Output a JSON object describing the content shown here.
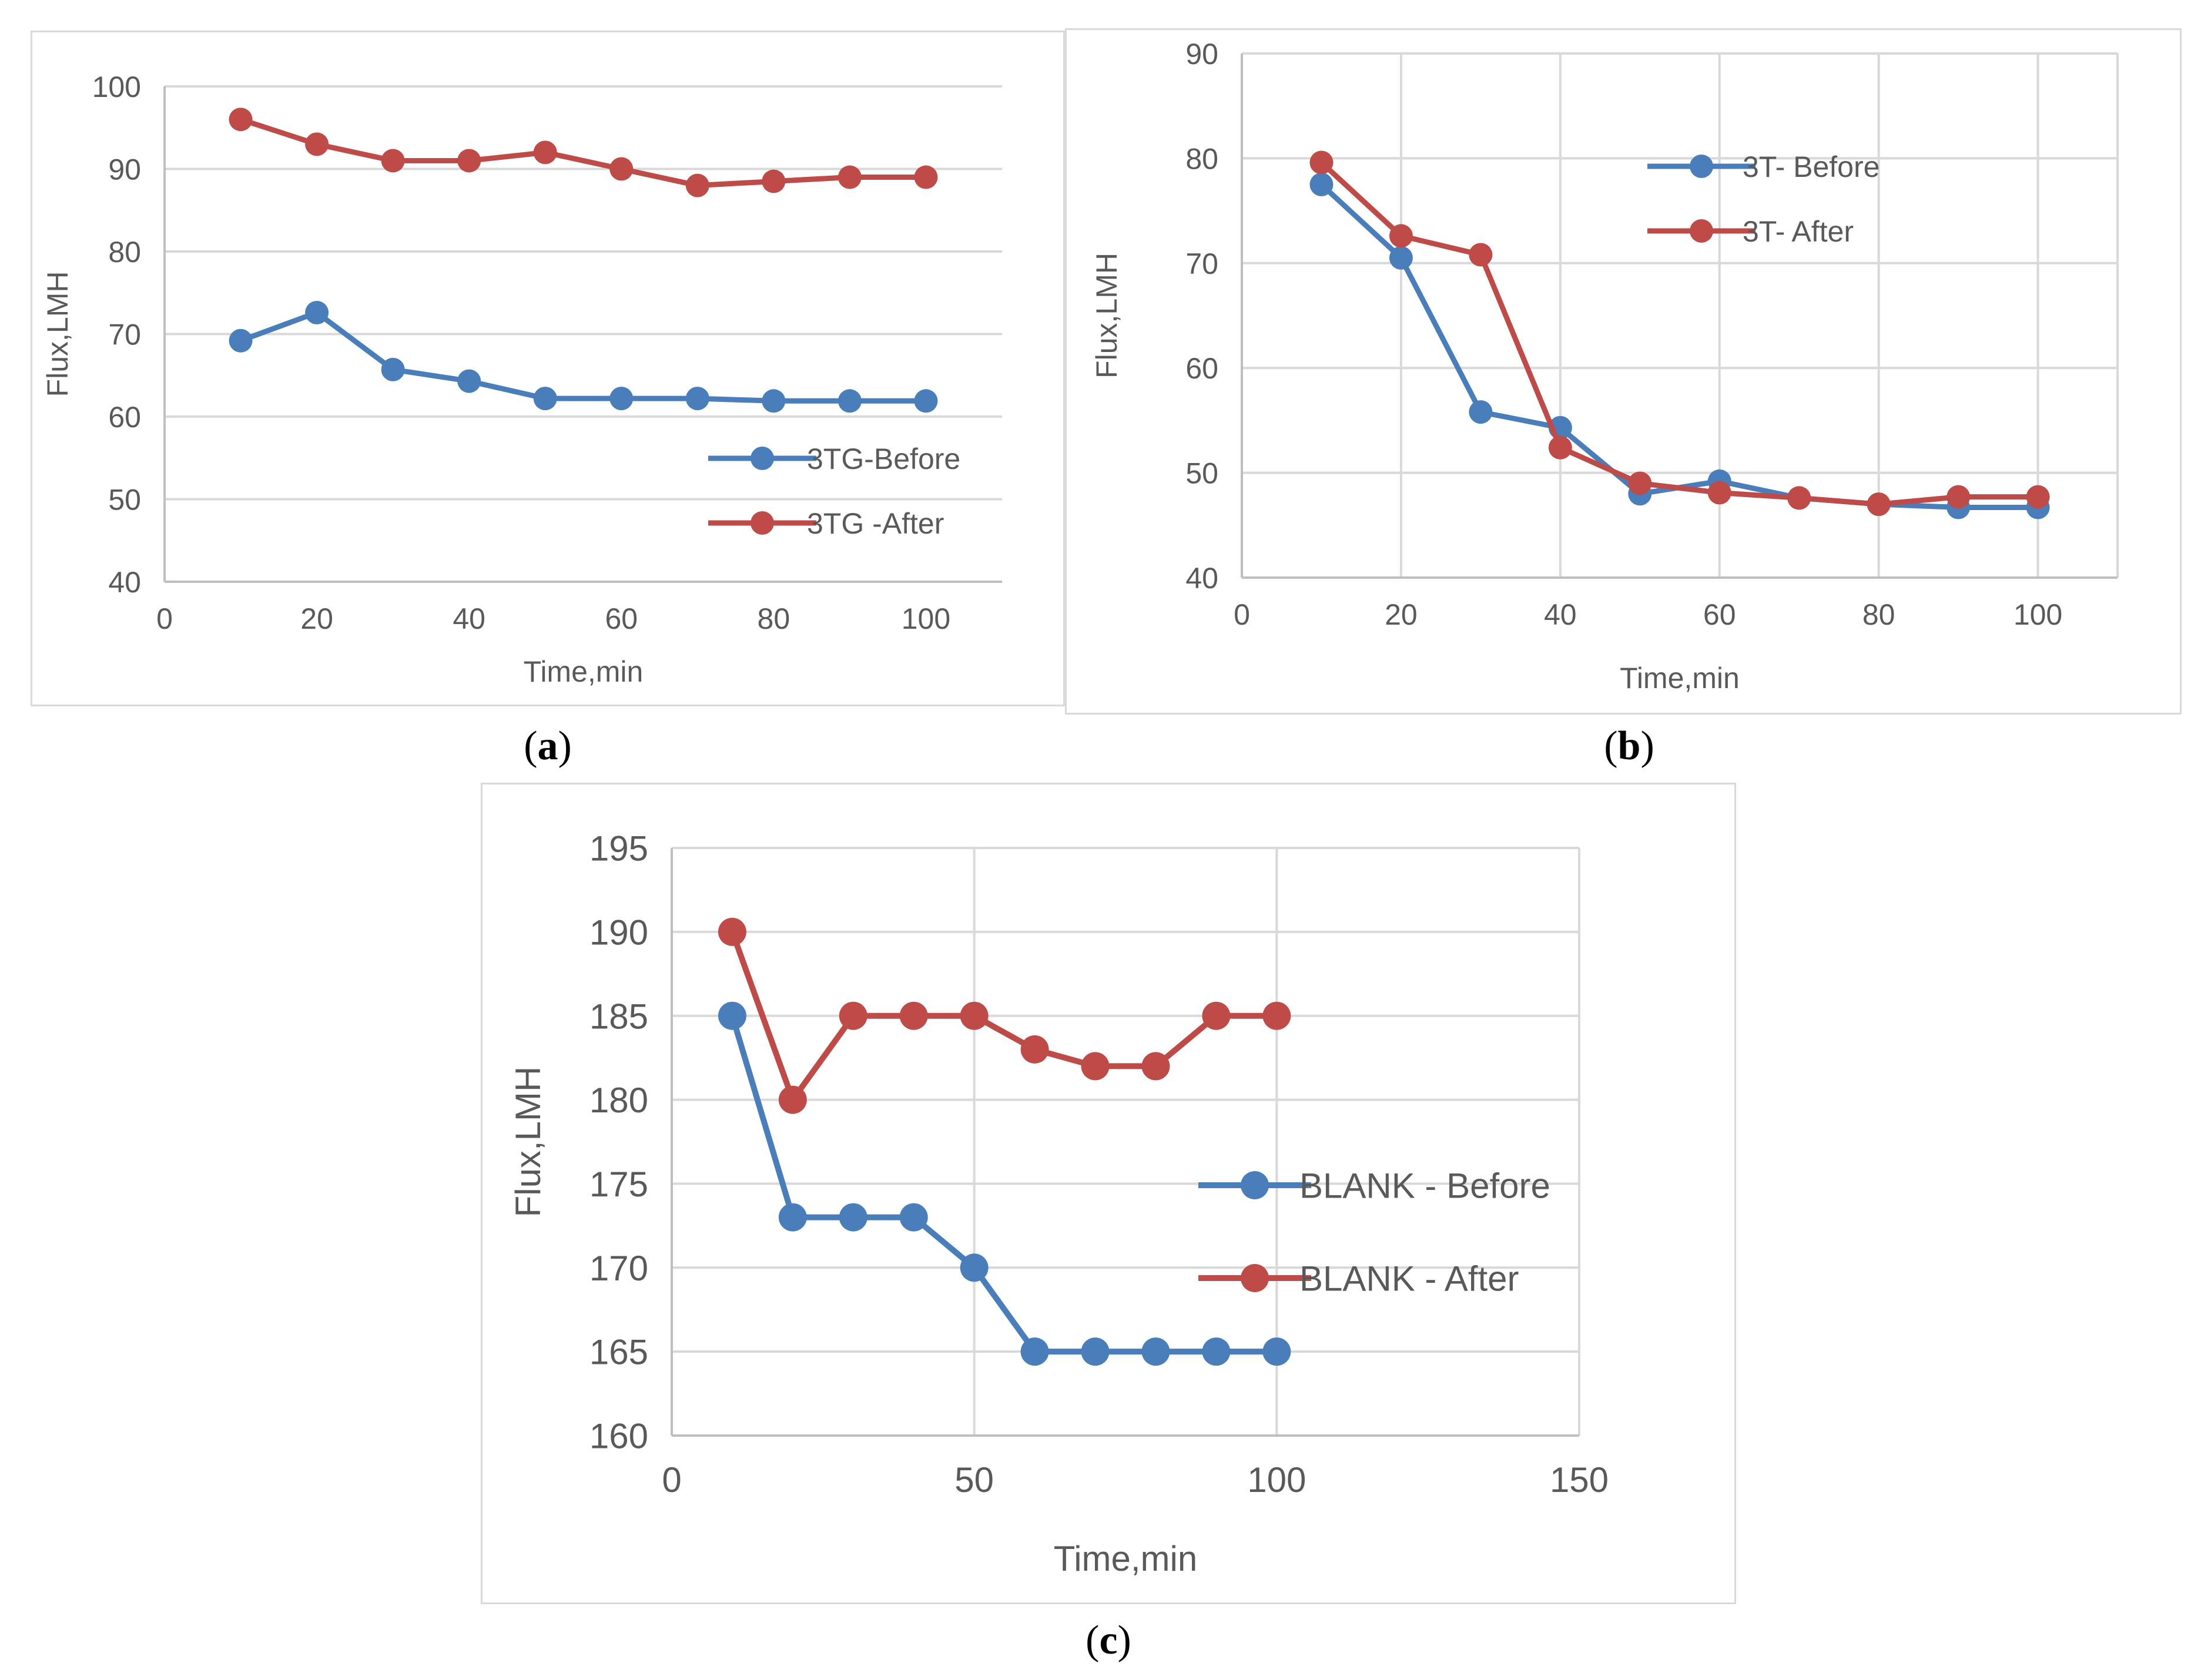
{
  "colors": {
    "before": "#4a7ebb",
    "after": "#be4b48",
    "grid": "#d9d9d9",
    "axis": "#bfbfbf",
    "text": "#595959"
  },
  "captions": [
    {
      "pre": "(",
      "letter": "a",
      "post": ")"
    },
    {
      "pre": "(",
      "letter": "b",
      "post": ")"
    },
    {
      "pre": "(",
      "letter": "c",
      "post": ")"
    }
  ],
  "chart_data": [
    {
      "type": "line",
      "xlabel": "Time,min",
      "ylabel": "Flux,LMH",
      "xlim": [
        0,
        110
      ],
      "ylim": [
        40,
        100
      ],
      "xticks": [
        0,
        20,
        40,
        60,
        80,
        100
      ],
      "yticks": [
        40,
        50,
        60,
        70,
        80,
        90,
        100
      ],
      "legend": "right-middle",
      "grid": "horizontal",
      "series": [
        {
          "name": "3TG-Before",
          "color": "#4a7ebb",
          "x": [
            10,
            20,
            30,
            40,
            50,
            60,
            70,
            80,
            90,
            100
          ],
          "y": [
            69.2,
            72.6,
            65.7,
            64.3,
            62.2,
            62.2,
            62.2,
            61.9,
            61.9,
            61.9
          ]
        },
        {
          "name": "3TG -After",
          "color": "#be4b48",
          "x": [
            10,
            20,
            30,
            40,
            50,
            60,
            70,
            80,
            90,
            100
          ],
          "y": [
            96,
            93,
            91,
            91,
            92,
            90,
            88,
            88.5,
            89,
            89
          ]
        }
      ]
    },
    {
      "type": "line",
      "xlabel": "Time,min",
      "ylabel": "Flux,LMH",
      "xlim": [
        0,
        110
      ],
      "ylim": [
        40,
        90
      ],
      "xticks": [
        0,
        20,
        40,
        60,
        80,
        100
      ],
      "yticks": [
        40,
        50,
        60,
        70,
        80,
        90
      ],
      "legend": "top-right",
      "grid": "both",
      "series": [
        {
          "name": "3T- Before",
          "color": "#4a7ebb",
          "x": [
            10,
            20,
            30,
            40,
            50,
            60,
            70,
            80,
            90,
            100
          ],
          "y": [
            77.5,
            70.5,
            55.8,
            54.3,
            48,
            49.2,
            47.6,
            47,
            46.7,
            46.7
          ]
        },
        {
          "name": "3T- After",
          "color": "#be4b48",
          "x": [
            10,
            20,
            30,
            40,
            50,
            60,
            70,
            80,
            90,
            100
          ],
          "y": [
            79.6,
            72.6,
            70.8,
            52.4,
            49,
            48.1,
            47.6,
            47,
            47.7,
            47.7
          ]
        }
      ]
    },
    {
      "type": "line",
      "xlabel": "Time,min",
      "ylabel": "Flux,LMH",
      "xlim": [
        0,
        150
      ],
      "ylim": [
        160,
        195
      ],
      "xticks": [
        0,
        50,
        100,
        150
      ],
      "yticks": [
        160,
        165,
        170,
        175,
        180,
        185,
        190,
        195
      ],
      "legend": "right-middle",
      "grid": "both",
      "series": [
        {
          "name": "BLANK - Before",
          "color": "#4a7ebb",
          "x": [
            10,
            20,
            30,
            40,
            50,
            60,
            70,
            80,
            90,
            100
          ],
          "y": [
            185,
            173,
            173,
            173,
            170,
            165,
            165,
            165,
            165,
            165
          ]
        },
        {
          "name": "BLANK - After",
          "color": "#be4b48",
          "x": [
            10,
            20,
            30,
            40,
            50,
            60,
            70,
            80,
            90,
            100
          ],
          "y": [
            190,
            180,
            185,
            185,
            185,
            183,
            182,
            182,
            185,
            185
          ]
        }
      ]
    }
  ]
}
